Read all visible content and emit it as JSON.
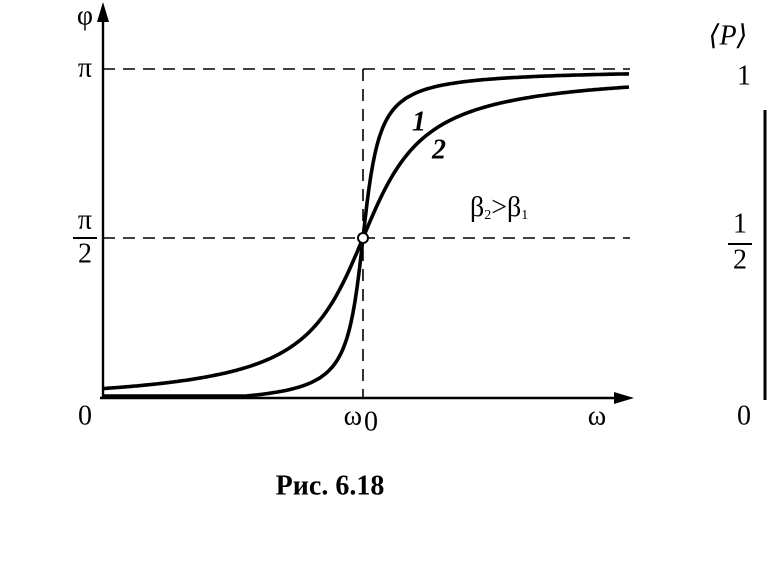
{
  "y_axis": {
    "label": "φ",
    "ticks": {
      "top": "π",
      "middle": {
        "numerator": "π",
        "denominator": "2"
      },
      "origin": "0"
    }
  },
  "x_axis": {
    "label": "ω",
    "marker": {
      "base": "ω",
      "sub": "0"
    }
  },
  "curves": [
    {
      "label": "1"
    },
    {
      "label": "2"
    }
  ],
  "condition": {
    "left": "β",
    "left_sub": "2",
    "relation": ">",
    "right": "β",
    "right_sub": "1"
  },
  "caption": "Рис. 6.18",
  "right_panel": {
    "y_label": "⟨P⟩",
    "ticks": {
      "top": "1",
      "middle": {
        "numerator": "1",
        "denominator": "2"
      },
      "origin": "0"
    }
  }
}
